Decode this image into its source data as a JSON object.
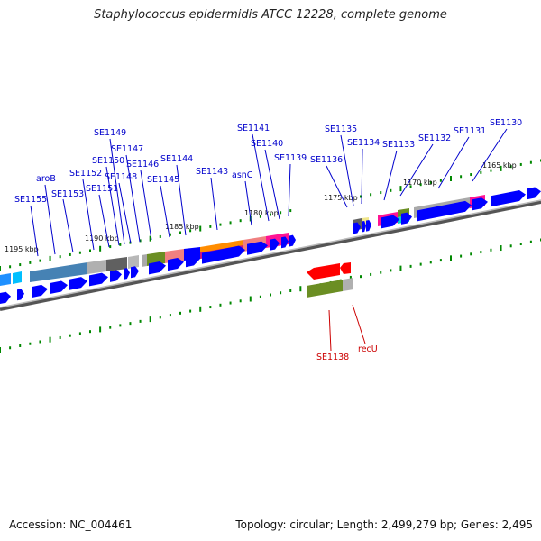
{
  "title": "Staphylococcus epidermidis ATCC 12228, complete genome",
  "footer": {
    "accession": "Accession: NC_004461",
    "summary": "Topology: circular; Length: 2,499,279 bp; Genes: 2,495"
  },
  "colors": {
    "forward_label": "#0000cc",
    "reverse_label": "#cc0000",
    "cds_forward": "#0000ff",
    "cds_reverse": "#ff0000",
    "tick": "#008800",
    "backbone": "#888888"
  },
  "kbp_ticks": [
    "1195 kbp",
    "1190 kbp",
    "1185 kbp",
    "1180 kbp",
    "1175 kbp",
    "1170 kbp",
    "1165 kbp"
  ],
  "forward_genes": [
    "SE1155",
    "aroB",
    "SE1153",
    "SE1152",
    "SE1151",
    "SE1150",
    "SE1149",
    "SE1148",
    "SE1147",
    "SE1146",
    "SE1145",
    "SE1144",
    "SE1143",
    "asnC",
    "SE1141",
    "SE1140",
    "SE1139",
    "SE1136",
    "SE1135",
    "SE1134",
    "SE1133",
    "SE1132",
    "SE1131",
    "SE1130"
  ],
  "reverse_genes": [
    "SE1138",
    "recU"
  ]
}
